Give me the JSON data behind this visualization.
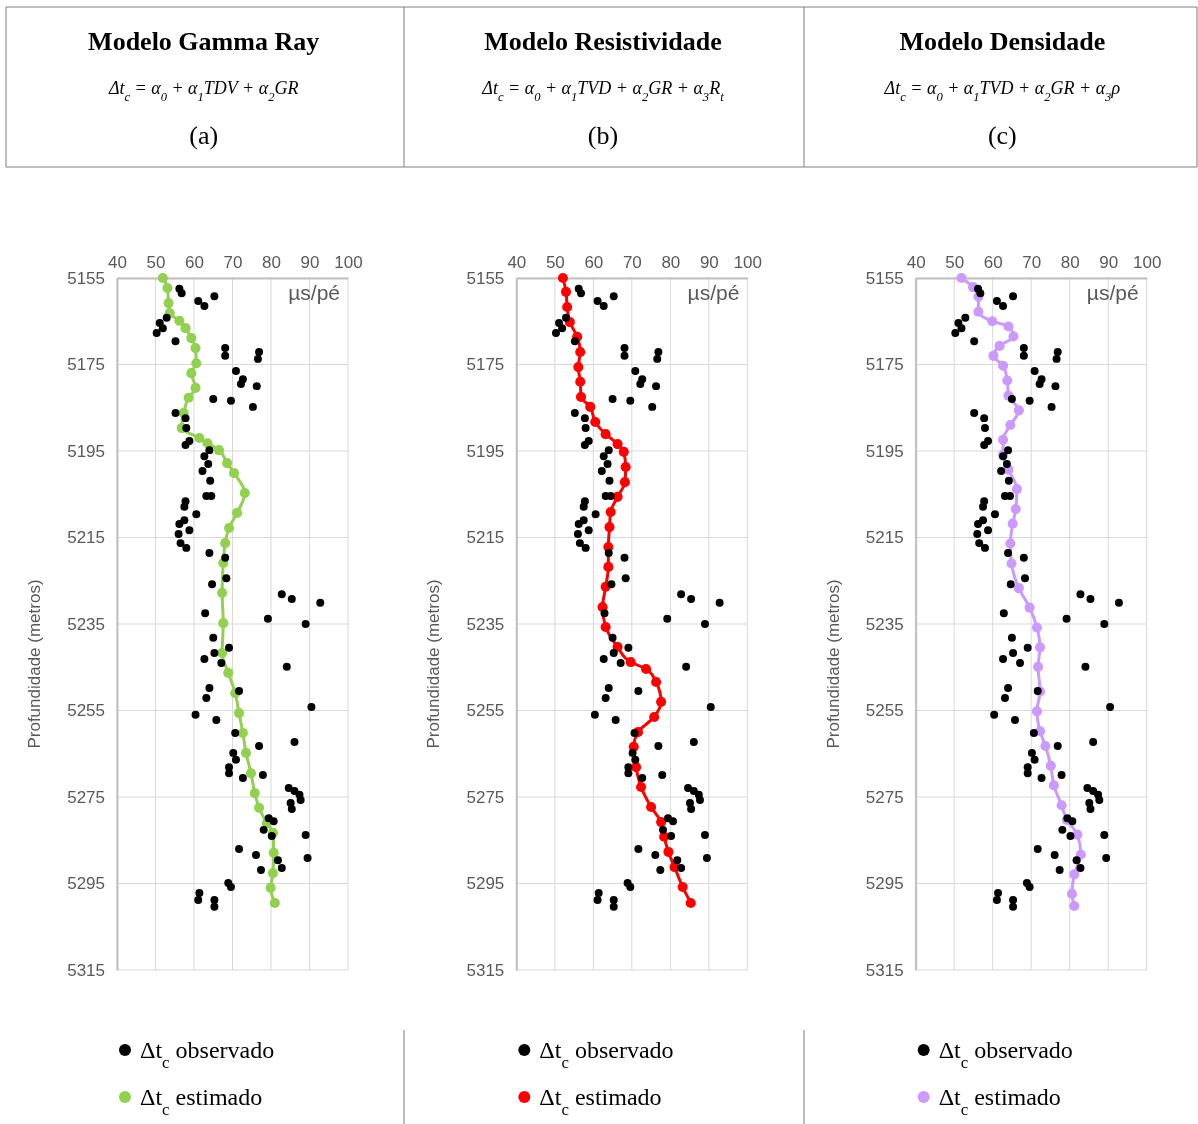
{
  "chart_data": [
    {
      "type": "scatter",
      "title": "Modelo Gamma Ray",
      "subtitle": "Δt$_{c}$ = α$_{0}$ +  α$_{1}$TDV + α$_{2}$GR",
      "annotations": [
        "(a)"
      ],
      "xlabel": "µs/pé",
      "ylabel": "Profundidade (metros)",
      "xlim": [
        40,
        100
      ],
      "xticks": [
        40,
        50,
        60,
        70,
        80,
        90,
        100
      ],
      "ylim": [
        5315,
        5155
      ],
      "yticks": [
        5155,
        5175,
        5195,
        5215,
        5235,
        5255,
        5275,
        5295,
        5315
      ],
      "grid": true,
      "legend": "bottom",
      "marker": "circle",
      "series": [
        {
          "name": "Δt$_{c}$ observado",
          "color": "#000000",
          "type": "scatter",
          "x": [
            56.2,
            56.8,
            61.1,
            65.3,
            62.7,
            52.9,
            51.1,
            51.9,
            50.3,
            55.2,
            68.1,
            76.9,
            68.1,
            76.6,
            70.9,
            72.7,
            72.2,
            76.3,
            65.0,
            69.6,
            75.3,
            55.2,
            57.8,
            58.0,
            58.8,
            57.8,
            64.0,
            62.7,
            63.7,
            62.2,
            64.2,
            57.8,
            63.2,
            57.5,
            64.5,
            60.6,
            57.5,
            56.2,
            56.0,
            58.8,
            56.5,
            58.0,
            64.0,
            68.1,
            68.4,
            64.7,
            82.8,
            85.4,
            92.8,
            79.2,
            89.0,
            62.9,
            65.0,
            65.3,
            62.7,
            69.1,
            67.1,
            84.1,
            64.0,
            63.2,
            71.7,
            60.4,
            65.8,
            90.5,
            70.7,
            76.9,
            86.1,
            70.2,
            70.9,
            69.1,
            69.1,
            77.9,
            72.7,
            84.6,
            86.1,
            87.4,
            87.7,
            85.1,
            85.4,
            79.4,
            80.7,
            78.1,
            80.2,
            89.0,
            71.7,
            76.1,
            81.8,
            77.4,
            89.5,
            82.8,
            68.9,
            69.6,
            61.4,
            61.1,
            65.3,
            65.3
          ],
          "values": [
            5157.5,
            5158.5,
            5160.3,
            5159.2,
            5161.5,
            5164.2,
            5165.4,
            5166.6,
            5167.7,
            5169.6,
            5171.2,
            5172.1,
            5173.0,
            5173.7,
            5176.5,
            5178.4,
            5179.5,
            5180.0,
            5183.0,
            5183.4,
            5184.8,
            5186.2,
            5187.4,
            5189.7,
            5192.7,
            5193.6,
            5194.8,
            5196.2,
            5198.0,
            5199.6,
            5201.9,
            5206.6,
            5205.4,
            5207.9,
            5205.4,
            5209.6,
            5211.0,
            5211.9,
            5214.2,
            5213.3,
            5216.3,
            5217.4,
            5218.6,
            5219.7,
            5224.4,
            5225.8,
            5228.1,
            5229.2,
            5230.1,
            5233.8,
            5235.0,
            5232.5,
            5238.2,
            5241.7,
            5243.1,
            5240.5,
            5244.0,
            5244.9,
            5249.8,
            5252.1,
            5250.5,
            5256.0,
            5257.2,
            5254.2,
            5260.2,
            5263.2,
            5262.3,
            5264.8,
            5266.4,
            5268.1,
            5269.5,
            5269.9,
            5270.6,
            5272.9,
            5273.6,
            5274.5,
            5275.7,
            5276.4,
            5277.8,
            5279.9,
            5280.6,
            5282.6,
            5284.0,
            5283.8,
            5287.0,
            5288.4,
            5289.6,
            5291.9,
            5289.1,
            5291.4,
            5294.9,
            5295.8,
            5297.2,
            5298.8,
            5298.8,
            5300.4
          ]
        },
        {
          "name": "Δt$_{c}$  estimado",
          "color": "#92d050",
          "type": "line",
          "x": [
            51.9,
            53.1,
            53.4,
            53.7,
            56.2,
            57.8,
            59.3,
            60.4,
            60.6,
            59.3,
            60.4,
            58.6,
            57.3,
            56.8,
            61.4,
            63.5,
            66.5,
            68.6,
            70.4,
            73.2,
            71.2,
            69.1,
            68.1,
            67.6,
            67.3,
            67.6,
            67.3,
            68.9,
            70.7,
            71.7,
            72.7,
            73.5,
            74.8,
            75.8,
            76.9,
            78.9,
            80.5,
            80.7,
            80.5,
            79.9,
            81.0
          ],
          "values": [
            5155.0,
            5157.3,
            5160.8,
            5163.1,
            5164.9,
            5166.6,
            5168.9,
            5171.2,
            5174.7,
            5177.0,
            5180.4,
            5182.7,
            5186.2,
            5189.7,
            5192.0,
            5193.2,
            5194.8,
            5197.8,
            5200.1,
            5204.7,
            5209.3,
            5212.8,
            5216.3,
            5220.9,
            5227.8,
            5234.8,
            5241.7,
            5246.3,
            5251.0,
            5255.6,
            5260.2,
            5264.8,
            5269.5,
            5274.1,
            5277.5,
            5281.0,
            5283.3,
            5287.9,
            5292.6,
            5296.0,
            5299.5
          ]
        }
      ]
    },
    {
      "type": "scatter",
      "title": "Modelo Resistividade",
      "subtitle": "Δt$_{c}$ = α$_{0}$ + α$_{1}$TVD + α$_{2}$GR + α$_{3}$R$_{t}$",
      "annotations": [
        "(b)"
      ],
      "xlabel": "µs/pé",
      "ylabel": "Profundidade (metros)",
      "xlim": [
        40,
        100
      ],
      "xticks": [
        40,
        50,
        60,
        70,
        80,
        90,
        100
      ],
      "ylim": [
        5315,
        5155
      ],
      "yticks": [
        5155,
        5175,
        5195,
        5215,
        5235,
        5255,
        5275,
        5295,
        5315
      ],
      "grid": true,
      "legend": "bottom",
      "marker": "circle",
      "series": [
        {
          "name": "Δt$_{c}$ observado",
          "color": "#000000",
          "type": "scatter",
          "x": [
            56.2,
            56.8,
            61.1,
            65.3,
            62.7,
            52.9,
            51.1,
            51.9,
            50.3,
            55.2,
            68.1,
            76.9,
            68.1,
            76.6,
            70.9,
            72.7,
            72.2,
            76.3,
            65.0,
            69.6,
            75.3,
            55.2,
            57.8,
            58.0,
            58.8,
            57.8,
            64.0,
            62.7,
            63.7,
            62.2,
            64.2,
            57.8,
            63.2,
            57.5,
            64.5,
            60.6,
            57.5,
            56.2,
            56.0,
            58.8,
            56.5,
            58.0,
            64.0,
            68.1,
            68.4,
            64.7,
            82.8,
            85.4,
            92.8,
            79.2,
            89.0,
            62.9,
            65.0,
            65.3,
            62.7,
            69.1,
            67.1,
            84.1,
            64.0,
            63.2,
            71.7,
            60.4,
            65.8,
            90.5,
            70.7,
            76.9,
            86.1,
            70.2,
            70.9,
            69.1,
            69.1,
            77.9,
            72.7,
            84.6,
            86.1,
            87.4,
            87.7,
            85.1,
            85.4,
            79.4,
            80.7,
            78.1,
            80.2,
            89.0,
            71.7,
            76.1,
            81.8,
            77.4,
            89.5,
            82.8,
            68.9,
            69.6,
            61.4,
            61.1,
            65.3,
            65.3
          ],
          "values": [
            5157.5,
            5158.5,
            5160.3,
            5159.2,
            5161.5,
            5164.2,
            5165.4,
            5166.6,
            5167.7,
            5169.6,
            5171.2,
            5172.1,
            5173.0,
            5173.7,
            5176.5,
            5178.4,
            5179.5,
            5180.0,
            5183.0,
            5183.4,
            5184.8,
            5186.2,
            5187.4,
            5189.7,
            5192.7,
            5193.6,
            5194.8,
            5196.2,
            5198.0,
            5199.6,
            5201.9,
            5206.6,
            5205.4,
            5207.9,
            5205.4,
            5209.6,
            5211.0,
            5211.9,
            5214.2,
            5213.3,
            5216.3,
            5217.4,
            5218.6,
            5219.7,
            5224.4,
            5225.8,
            5228.1,
            5229.2,
            5230.1,
            5233.8,
            5235.0,
            5232.5,
            5238.2,
            5241.7,
            5243.1,
            5240.5,
            5244.0,
            5244.9,
            5249.8,
            5252.1,
            5250.5,
            5256.0,
            5257.2,
            5254.2,
            5260.2,
            5263.2,
            5262.3,
            5264.8,
            5266.4,
            5268.1,
            5269.5,
            5269.9,
            5270.6,
            5272.9,
            5273.6,
            5274.5,
            5275.7,
            5276.4,
            5277.8,
            5279.9,
            5280.6,
            5282.6,
            5284.0,
            5283.8,
            5287.0,
            5288.4,
            5289.6,
            5291.9,
            5289.1,
            5291.4,
            5294.9,
            5295.8,
            5297.2,
            5298.8,
            5298.8,
            5300.4
          ]
        },
        {
          "name": "Δt$_{c}$ estimado",
          "color": "#ff0000",
          "type": "line",
          "x": [
            52.1,
            52.9,
            53.2,
            53.9,
            55.8,
            56.6,
            56.1,
            56.6,
            56.8,
            59.2,
            60.5,
            63.2,
            66.3,
            67.9,
            68.4,
            68.2,
            66.3,
            64.5,
            64.2,
            63.9,
            63.9,
            63.2,
            62.4,
            63.2,
            66.3,
            69.7,
            73.7,
            76.3,
            77.6,
            75.8,
            71.6,
            70.5,
            71.1,
            72.4,
            75.0,
            77.6,
            78.4,
            79.5,
            81.1,
            83.2,
            85.3
          ],
          "values": [
            5155.0,
            5158.2,
            5161.7,
            5165.2,
            5168.6,
            5172.1,
            5175.6,
            5179.0,
            5182.5,
            5184.8,
            5188.3,
            5191.1,
            5193.4,
            5195.2,
            5198.7,
            5202.2,
            5205.6,
            5209.1,
            5212.6,
            5217.2,
            5221.8,
            5226.4,
            5231.1,
            5235.7,
            5240.3,
            5243.8,
            5245.4,
            5248.4,
            5253.0,
            5256.5,
            5260.0,
            5263.4,
            5268.1,
            5272.7,
            5277.3,
            5280.8,
            5284.2,
            5287.7,
            5291.2,
            5295.8,
            5299.5
          ]
        }
      ]
    },
    {
      "type": "scatter",
      "title": "Modelo Densidade",
      "subtitle": "Δt$_{c}$ = α$_{0}$ + α$_{1}$TVD + α$_{2}$GR + α$_{3}$ρ",
      "annotations": [
        "(c)"
      ],
      "xlabel": "µs/pé",
      "ylabel": "Profundidade (metros)",
      "xlim": [
        40,
        100
      ],
      "xticks": [
        40,
        50,
        60,
        70,
        80,
        90,
        100
      ],
      "ylim": [
        5315,
        5155
      ],
      "yticks": [
        5155,
        5175,
        5195,
        5215,
        5235,
        5255,
        5275,
        5295,
        5315
      ],
      "grid": true,
      "legend": "bottom",
      "marker": "circle",
      "series": [
        {
          "name": "Δt$_{c}$ observado",
          "color": "#000000",
          "type": "scatter",
          "x": [
            56.2,
            56.8,
            61.1,
            65.3,
            62.7,
            52.9,
            51.1,
            51.9,
            50.3,
            55.2,
            68.1,
            76.9,
            68.1,
            76.6,
            70.9,
            72.7,
            72.2,
            76.3,
            65.0,
            69.6,
            75.3,
            55.2,
            57.8,
            58.0,
            58.8,
            57.8,
            64.0,
            62.7,
            63.7,
            62.2,
            64.2,
            57.8,
            63.2,
            57.5,
            64.5,
            60.6,
            57.5,
            56.2,
            56.0,
            58.8,
            56.5,
            58.0,
            64.0,
            68.1,
            68.4,
            64.7,
            82.8,
            85.4,
            92.8,
            79.2,
            89.0,
            62.9,
            65.0,
            65.3,
            62.7,
            69.1,
            67.1,
            84.1,
            64.0,
            63.2,
            71.7,
            60.4,
            65.8,
            90.5,
            70.7,
            76.9,
            86.1,
            70.2,
            70.9,
            69.1,
            69.1,
            77.9,
            72.7,
            84.6,
            86.1,
            87.4,
            87.7,
            85.1,
            85.4,
            79.4,
            80.7,
            78.1,
            80.2,
            89.0,
            71.7,
            76.1,
            81.8,
            77.4,
            89.5,
            82.8,
            68.9,
            69.6,
            61.4,
            61.1,
            65.3,
            65.3
          ],
          "values": [
            5157.5,
            5158.5,
            5160.3,
            5159.2,
            5161.5,
            5164.2,
            5165.4,
            5166.6,
            5167.7,
            5169.6,
            5171.2,
            5172.1,
            5173.0,
            5173.7,
            5176.5,
            5178.4,
            5179.5,
            5180.0,
            5183.0,
            5183.4,
            5184.8,
            5186.2,
            5187.4,
            5189.7,
            5192.7,
            5193.6,
            5194.8,
            5196.2,
            5198.0,
            5199.6,
            5201.9,
            5206.6,
            5205.4,
            5207.9,
            5205.4,
            5209.6,
            5211.0,
            5211.9,
            5214.2,
            5213.3,
            5216.3,
            5217.4,
            5218.6,
            5219.7,
            5224.4,
            5225.8,
            5228.1,
            5229.2,
            5230.1,
            5233.8,
            5235.0,
            5232.5,
            5238.2,
            5241.7,
            5243.1,
            5240.5,
            5244.0,
            5244.9,
            5249.8,
            5252.1,
            5250.5,
            5256.0,
            5257.2,
            5254.2,
            5260.2,
            5263.2,
            5262.3,
            5264.8,
            5266.4,
            5268.1,
            5269.5,
            5269.9,
            5270.6,
            5272.9,
            5273.6,
            5274.5,
            5275.7,
            5276.4,
            5277.8,
            5279.9,
            5280.6,
            5282.6,
            5284.0,
            5283.8,
            5287.0,
            5288.4,
            5289.6,
            5291.9,
            5289.1,
            5291.4,
            5294.9,
            5295.8,
            5297.2,
            5298.8,
            5298.8,
            5300.4
          ]
        },
        {
          "name": "Δt$_{c}$ estimado",
          "color": "#cc99ff",
          "type": "line",
          "x": [
            51.9,
            54.9,
            56.3,
            56.3,
            59.9,
            64.1,
            65.4,
            61.8,
            60.2,
            62.7,
            63.8,
            64.1,
            66.8,
            64.6,
            62.7,
            62.7,
            64.1,
            66.3,
            66.0,
            65.2,
            64.6,
            64.9,
            66.8,
            69.6,
            71.5,
            72.3,
            71.8,
            72.3,
            71.5,
            72.3,
            73.7,
            75.1,
            75.9,
            77.9,
            79.3,
            82.0,
            82.9,
            81.2,
            80.6,
            81.2
          ],
          "values": [
            5155.0,
            5157.1,
            5159.3,
            5162.8,
            5165.0,
            5166.2,
            5168.5,
            5170.7,
            5173.0,
            5175.3,
            5178.7,
            5182.2,
            5185.6,
            5189.0,
            5192.4,
            5195.9,
            5199.3,
            5203.8,
            5208.4,
            5211.8,
            5216.4,
            5221.0,
            5226.7,
            5231.2,
            5235.8,
            5240.4,
            5244.9,
            5250.6,
            5255.2,
            5259.8,
            5263.2,
            5267.8,
            5272.3,
            5276.9,
            5280.3,
            5283.7,
            5288.3,
            5292.9,
            5297.4,
            5300.2
          ]
        }
      ]
    }
  ]
}
